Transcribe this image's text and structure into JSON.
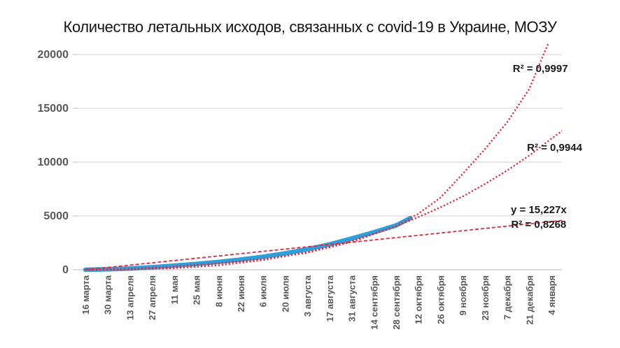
{
  "chart_data": {
    "type": "line",
    "title": "Количество летальных исходов, связанных с covid-19 в Украине, МОЗУ",
    "xlabel": "",
    "ylabel": "",
    "ylim": [
      0,
      21000
    ],
    "yticks": [
      0,
      5000,
      10000,
      15000,
      20000
    ],
    "ytick_labels": [
      "0",
      "5000",
      "10000",
      "15000",
      "20000"
    ],
    "x_unit_days_between_ticks": 14,
    "xtick_labels": [
      "16 марта",
      "30 марта",
      "13 апреля",
      "27 апреля",
      "11 мая",
      "25 мая",
      "8 июня",
      "22 июня",
      "6 июля",
      "20 июля",
      "3 августа",
      "17 августа",
      "31 августа",
      "14 сентября",
      "28 сентября",
      "12 октября",
      "26 октября",
      "9 ноября",
      "23 ноября",
      "7 декабря",
      "21 декабря",
      "4 января"
    ],
    "grid": true,
    "legend": false,
    "colors": {
      "actual": "#2e9fd8",
      "trend": "#e8273c",
      "grid": "#d9d9d9",
      "axis": "#c6c6c6",
      "axis_text": "#595959",
      "annotation_text": "#1a1a1a",
      "background": "#ffffff"
    },
    "series": [
      {
        "name": "actual-deaths",
        "style": "solid-markers",
        "color_key": "actual",
        "points_day_value": [
          [
            0,
            0
          ],
          [
            14,
            40
          ],
          [
            28,
            110
          ],
          [
            42,
            230
          ],
          [
            56,
            380
          ],
          [
            70,
            540
          ],
          [
            84,
            720
          ],
          [
            98,
            940
          ],
          [
            112,
            1200
          ],
          [
            126,
            1520
          ],
          [
            140,
            1900
          ],
          [
            154,
            2350
          ],
          [
            168,
            2900
          ],
          [
            182,
            3480
          ],
          [
            196,
            4120
          ],
          [
            205,
            4800
          ]
        ]
      },
      {
        "name": "trend-exponential",
        "style": "dotted",
        "color_key": "trend",
        "r_squared": "0,9997",
        "points_day_value": [
          [
            0,
            0
          ],
          [
            28,
            70
          ],
          [
            56,
            300
          ],
          [
            84,
            600
          ],
          [
            112,
            980
          ],
          [
            140,
            1580
          ],
          [
            168,
            2580
          ],
          [
            196,
            4050
          ],
          [
            210,
            5200
          ],
          [
            224,
            6700
          ],
          [
            238,
            8900
          ],
          [
            252,
            11200
          ],
          [
            266,
            13700
          ],
          [
            280,
            16800
          ],
          [
            289,
            20000
          ],
          [
            292,
            21000
          ]
        ]
      },
      {
        "name": "trend-polynomial",
        "style": "dotted",
        "color_key": "trend",
        "r_squared": "0,9944",
        "points_day_value": [
          [
            0,
            0
          ],
          [
            28,
            20
          ],
          [
            56,
            140
          ],
          [
            84,
            410
          ],
          [
            112,
            890
          ],
          [
            140,
            1630
          ],
          [
            168,
            2670
          ],
          [
            196,
            4050
          ],
          [
            210,
            4890
          ],
          [
            224,
            5800
          ],
          [
            238,
            6800
          ],
          [
            252,
            7970
          ],
          [
            266,
            9220
          ],
          [
            280,
            10610
          ],
          [
            294,
            12180
          ],
          [
            301,
            12930
          ]
        ]
      },
      {
        "name": "trend-linear",
        "style": "dashed",
        "color_key": "trend",
        "equation": "y = 15,227x",
        "r_squared": "0,8268",
        "points_day_value": [
          [
            0,
            0
          ],
          [
            301,
            4583
          ]
        ]
      }
    ],
    "annotations": [
      {
        "text": "R² = 0,9997",
        "day": 287,
        "value": 18700
      },
      {
        "text": "R² = 0,9944",
        "day": 296,
        "value": 11350
      },
      {
        "text": "y = 15,227x",
        "day": 286,
        "value": 5590
      },
      {
        "text": "R² = 0,8268",
        "day": 286,
        "value": 4230
      }
    ]
  }
}
